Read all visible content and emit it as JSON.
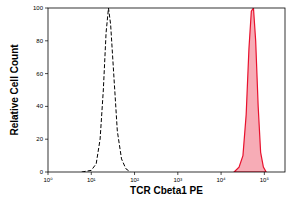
{
  "chart_data": {
    "type": "histogram",
    "xlabel": "TCR Cbeta1 PE",
    "ylabel": "Relative Cell Count",
    "log": "x",
    "xlim": [
      1,
      300000
    ],
    "xticks": [
      {
        "value": 1,
        "label": "10⁰"
      },
      {
        "value": 10,
        "label": "10¹"
      },
      {
        "value": 100,
        "label": "10²"
      },
      {
        "value": 1000,
        "label": "10³"
      },
      {
        "value": 10000,
        "label": "10⁴"
      },
      {
        "value": 100000,
        "label": "10⁵"
      }
    ],
    "ylim": [
      0,
      100
    ],
    "yticks": [
      0,
      20,
      40,
      60,
      80,
      100
    ],
    "series": [
      {
        "type": "line",
        "color": "#000000",
        "line_style": "dashed",
        "x": [
          6,
          10,
          13,
          16,
          19,
          22,
          25,
          28,
          33,
          40,
          50,
          63,
          80
        ],
        "values": [
          0,
          1,
          5,
          20,
          50,
          85,
          100,
          90,
          60,
          25,
          8,
          2,
          0
        ]
      },
      {
        "type": "area",
        "color": "#e8112d",
        "x": [
          20000,
          26000,
          32000,
          38000,
          44000,
          50000,
          56000,
          63000,
          72000,
          82000,
          95000,
          110000
        ],
        "values": [
          0,
          3,
          10,
          35,
          75,
          98,
          100,
          80,
          40,
          12,
          3,
          0
        ]
      }
    ]
  }
}
